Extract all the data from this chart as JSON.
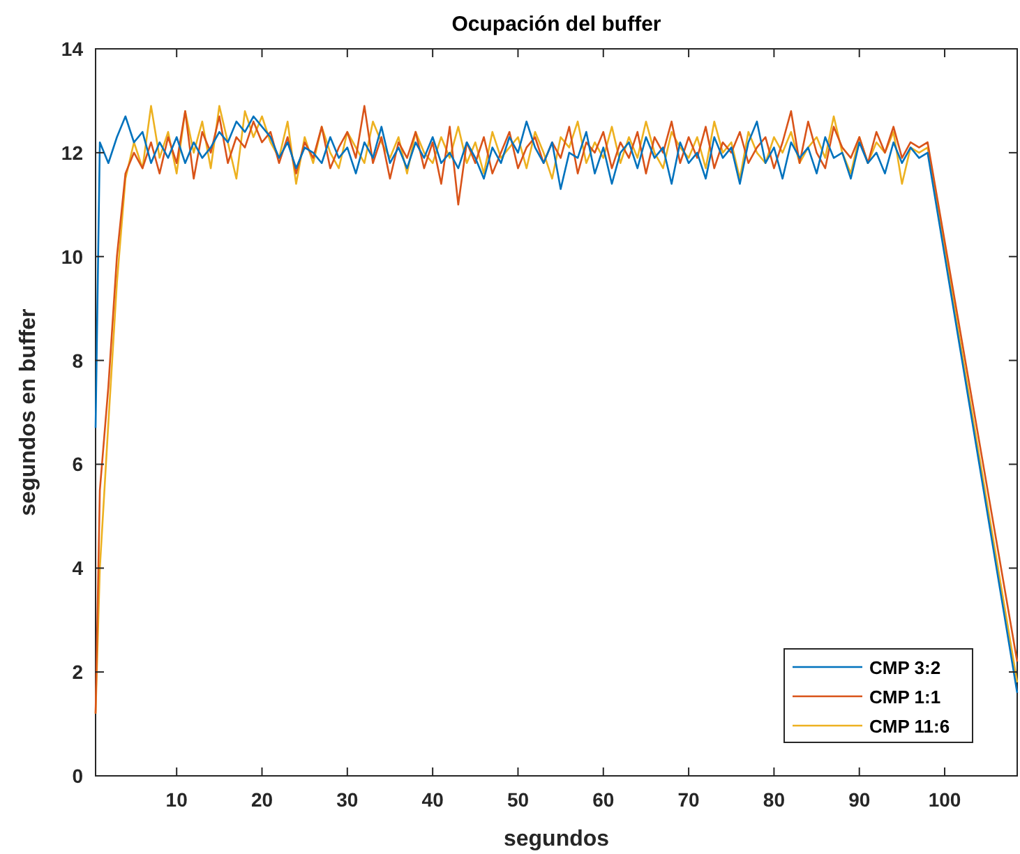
{
  "chart_data": {
    "type": "line",
    "title": "Ocupación del buffer",
    "xlabel": "segundos",
    "ylabel": "segundos en buffer",
    "x": [
      0.5,
      1,
      2,
      3,
      4,
      5,
      6,
      7,
      8,
      9,
      10,
      11,
      12,
      13,
      14,
      15,
      16,
      17,
      18,
      19,
      20,
      21,
      22,
      23,
      24,
      25,
      26,
      27,
      28,
      29,
      30,
      31,
      32,
      33,
      34,
      35,
      36,
      37,
      38,
      39,
      40,
      41,
      42,
      43,
      44,
      45,
      46,
      47,
      48,
      49,
      50,
      51,
      52,
      53,
      54,
      55,
      56,
      57,
      58,
      59,
      60,
      61,
      62,
      63,
      64,
      65,
      66,
      67,
      68,
      69,
      70,
      71,
      72,
      73,
      74,
      75,
      76,
      77,
      78,
      79,
      80,
      81,
      82,
      83,
      84,
      85,
      86,
      87,
      88,
      89,
      90,
      91,
      92,
      93,
      94,
      95,
      96,
      97,
      98,
      108.5
    ],
    "series": [
      {
        "name": "CMP 3:2",
        "color": "#0072bd",
        "values": [
          6.7,
          12.2,
          11.8,
          12.3,
          12.7,
          12.2,
          12.4,
          11.8,
          12.2,
          11.9,
          12.3,
          11.8,
          12.2,
          11.9,
          12.1,
          12.4,
          12.2,
          12.6,
          12.4,
          12.7,
          12.5,
          12.3,
          11.9,
          12.2,
          11.7,
          12.1,
          12.0,
          11.8,
          12.3,
          11.9,
          12.1,
          11.6,
          12.2,
          11.9,
          12.5,
          11.8,
          12.1,
          11.7,
          12.2,
          11.9,
          12.3,
          11.8,
          12.0,
          11.7,
          12.2,
          11.9,
          11.5,
          12.1,
          11.8,
          12.3,
          12.0,
          12.6,
          12.1,
          11.8,
          12.2,
          11.3,
          12.0,
          11.9,
          12.4,
          11.6,
          12.1,
          11.4,
          12.0,
          12.2,
          11.7,
          12.3,
          11.9,
          12.1,
          11.4,
          12.2,
          11.8,
          12.0,
          11.5,
          12.3,
          11.9,
          12.1,
          11.4,
          12.2,
          12.6,
          11.8,
          12.1,
          11.5,
          12.2,
          11.9,
          12.1,
          11.6,
          12.3,
          11.9,
          12.0,
          11.5,
          12.2,
          11.8,
          12.0,
          11.6,
          12.2,
          11.8,
          12.1,
          11.9,
          12.0,
          1.6
        ]
      },
      {
        "name": "CMP 1:1",
        "color": "#d95319",
        "values": [
          1.2,
          5.5,
          7.5,
          10.0,
          11.6,
          12.0,
          11.7,
          12.2,
          11.6,
          12.3,
          11.8,
          12.8,
          11.5,
          12.4,
          12.0,
          12.7,
          11.8,
          12.3,
          12.1,
          12.6,
          12.2,
          12.4,
          11.8,
          12.3,
          11.6,
          12.2,
          11.9,
          12.5,
          11.7,
          12.1,
          12.4,
          11.9,
          12.9,
          11.8,
          12.3,
          11.5,
          12.2,
          11.9,
          12.4,
          11.7,
          12.2,
          11.4,
          12.5,
          11.0,
          12.2,
          11.8,
          12.3,
          11.6,
          12.0,
          12.4,
          11.7,
          12.1,
          12.3,
          11.8,
          12.2,
          11.9,
          12.5,
          11.6,
          12.2,
          12.0,
          12.4,
          11.7,
          12.2,
          11.9,
          12.4,
          11.6,
          12.3,
          12.0,
          12.6,
          11.8,
          12.3,
          11.9,
          12.5,
          11.7,
          12.2,
          12.0,
          12.4,
          11.8,
          12.1,
          12.3,
          11.7,
          12.2,
          12.8,
          11.8,
          12.6,
          12.0,
          11.7,
          12.5,
          12.1,
          11.9,
          12.3,
          11.8,
          12.4,
          12.0,
          12.5,
          11.9,
          12.2,
          12.1,
          12.2,
          2.2
        ]
      },
      {
        "name": "CMP 11:6",
        "color": "#edb120",
        "values": [
          1.2,
          4.0,
          6.8,
          9.5,
          11.5,
          12.2,
          11.7,
          12.9,
          11.9,
          12.4,
          11.6,
          12.8,
          12.0,
          12.6,
          11.7,
          12.9,
          12.2,
          11.5,
          12.8,
          12.3,
          12.7,
          12.2,
          11.9,
          12.6,
          11.4,
          12.3,
          11.8,
          12.5,
          12.0,
          11.7,
          12.4,
          12.1,
          11.8,
          12.6,
          12.2,
          11.9,
          12.3,
          11.6,
          12.4,
          12.0,
          11.8,
          12.3,
          11.9,
          12.5,
          11.8,
          12.2,
          11.6,
          12.4,
          11.9,
          12.1,
          12.3,
          11.7,
          12.4,
          12.0,
          11.5,
          12.3,
          12.1,
          12.6,
          11.8,
          12.2,
          11.9,
          12.5,
          11.8,
          12.3,
          11.9,
          12.6,
          12.0,
          11.7,
          12.4,
          12.1,
          11.9,
          12.3,
          11.7,
          12.6,
          12.0,
          12.2,
          11.5,
          12.4,
          12.0,
          11.8,
          12.3,
          12.0,
          12.4,
          11.8,
          12.1,
          12.3,
          11.9,
          12.7,
          12.0,
          11.6,
          12.3,
          11.8,
          12.2,
          12.0,
          12.4,
          11.4,
          12.1,
          12.0,
          12.1,
          1.8
        ]
      }
    ],
    "xlim": [
      0.5,
      108.5
    ],
    "xticks": [
      10,
      20,
      30,
      40,
      50,
      60,
      70,
      80,
      90,
      100
    ],
    "ylim": [
      0,
      14
    ],
    "yticks": [
      0,
      2,
      4,
      6,
      8,
      10,
      12,
      14
    ],
    "grid": false,
    "legend": "bottom right",
    "marker": "none",
    "line_style": "solid"
  }
}
